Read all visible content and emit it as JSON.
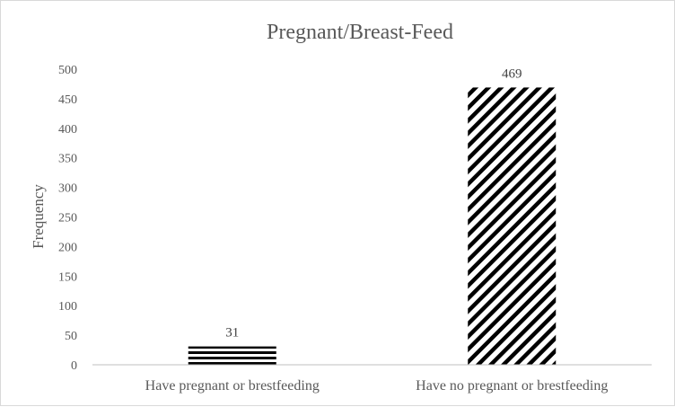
{
  "chart_data": {
    "type": "bar",
    "title": "Pregnant/Breast-Feed",
    "xlabel": "",
    "ylabel": "Frequency",
    "categories": [
      "Have pregnant or brestfeeding",
      "Have no pregnant or brestfeeding"
    ],
    "values": [
      31,
      469
    ],
    "data_labels": [
      "31",
      "469"
    ],
    "ylim": [
      0,
      500
    ],
    "yticks": [
      0,
      50,
      100,
      150,
      200,
      250,
      300,
      350,
      400,
      450,
      500
    ],
    "grid": false,
    "legend": "none",
    "bar_patterns": [
      "horizontal-stripes",
      "diagonal-stripes"
    ],
    "colors": {
      "bar": "#000000",
      "axis": "#bfbfbf",
      "text": "#595959"
    }
  }
}
